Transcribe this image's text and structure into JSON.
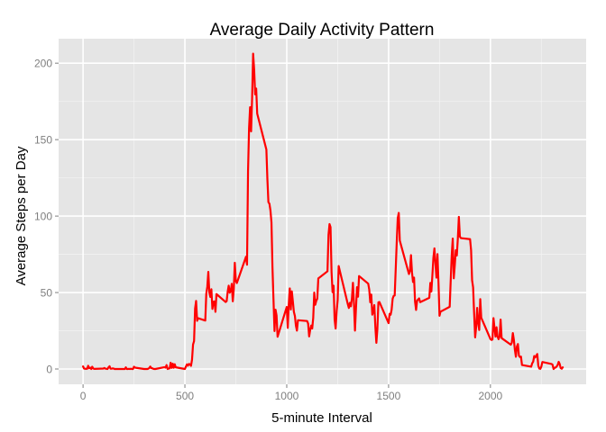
{
  "chart_data": {
    "type": "line",
    "title": "Average Daily Activity Pattern",
    "xlabel": "5-minute Interval",
    "ylabel": "Average Steps per Day",
    "xlim": [
      -120,
      2470
    ],
    "ylim": [
      -10,
      216
    ],
    "x_ticks": [
      0,
      500,
      1000,
      1500,
      2000
    ],
    "y_ticks": [
      0,
      50,
      100,
      150,
      200
    ],
    "grid": true,
    "legend": "none",
    "colors": {
      "panel": "#e5e5e5",
      "grid": "#ffffff",
      "line": "#ff0000",
      "tick_label": "#7f7f7f",
      "text": "#000000"
    },
    "series": [
      {
        "points": [
          [
            0,
            1.7
          ],
          [
            5,
            0.3
          ],
          [
            10,
            0.1
          ],
          [
            15,
            0.2
          ],
          [
            20,
            0.1
          ],
          [
            25,
            2.1
          ],
          [
            30,
            0.5
          ],
          [
            35,
            0.9
          ],
          [
            40,
            0.0
          ],
          [
            45,
            1.5
          ],
          [
            50,
            0.3
          ],
          [
            55,
            0.1
          ],
          [
            100,
            0.3
          ],
          [
            105,
            0.7
          ],
          [
            110,
            0.2
          ],
          [
            115,
            0.1
          ],
          [
            120,
            0.0
          ],
          [
            125,
            1.1
          ],
          [
            130,
            1.8
          ],
          [
            135,
            0.2
          ],
          [
            140,
            0.2
          ],
          [
            145,
            0.4
          ],
          [
            150,
            0.3
          ],
          [
            155,
            0.0
          ],
          [
            200,
            0.0
          ],
          [
            205,
            0.0
          ],
          [
            210,
            1.1
          ],
          [
            215,
            0.0
          ],
          [
            220,
            0.0
          ],
          [
            225,
            0.1
          ],
          [
            230,
            0.0
          ],
          [
            235,
            0.2
          ],
          [
            240,
            0.0
          ],
          [
            245,
            0.0
          ],
          [
            250,
            1.5
          ],
          [
            255,
            0.9
          ],
          [
            300,
            0.0
          ],
          [
            305,
            0.0
          ],
          [
            310,
            0.0
          ],
          [
            315,
            0.0
          ],
          [
            320,
            0.2
          ],
          [
            325,
            0.6
          ],
          [
            330,
            1.6
          ],
          [
            335,
            0.6
          ],
          [
            340,
            0.5
          ],
          [
            345,
            0.1
          ],
          [
            350,
            0.0
          ],
          [
            355,
            0.0
          ],
          [
            400,
            1.2
          ],
          [
            405,
            0.9
          ],
          [
            410,
            2.6
          ],
          [
            415,
            0.0
          ],
          [
            420,
            0.3
          ],
          [
            425,
            0.4
          ],
          [
            430,
            4.1
          ],
          [
            435,
            0.7
          ],
          [
            440,
            3.5
          ],
          [
            445,
            0.8
          ],
          [
            450,
            3.1
          ],
          [
            455,
            1.1
          ],
          [
            500,
            0.0
          ],
          [
            505,
            1.6
          ],
          [
            510,
            3.0
          ],
          [
            515,
            2.2
          ],
          [
            520,
            3.3
          ],
          [
            525,
            3.0
          ],
          [
            530,
            2.1
          ],
          [
            535,
            6.1
          ],
          [
            540,
            16.0
          ],
          [
            545,
            18.3
          ],
          [
            550,
            39.5
          ],
          [
            555,
            44.5
          ],
          [
            560,
            31.5
          ],
          [
            565,
            33.2
          ],
          [
            600,
            31.7
          ],
          [
            605,
            49.2
          ],
          [
            610,
            53.8
          ],
          [
            615,
            63.5
          ],
          [
            620,
            50.0
          ],
          [
            625,
            47.1
          ],
          [
            630,
            52.2
          ],
          [
            635,
            39.3
          ],
          [
            640,
            44.0
          ],
          [
            645,
            44.2
          ],
          [
            650,
            37.4
          ],
          [
            655,
            49.0
          ],
          [
            700,
            43.8
          ],
          [
            705,
            44.4
          ],
          [
            710,
            50.5
          ],
          [
            715,
            54.5
          ],
          [
            720,
            49.9
          ],
          [
            725,
            51.0
          ],
          [
            730,
            55.7
          ],
          [
            735,
            44.3
          ],
          [
            740,
            52.3
          ],
          [
            745,
            69.5
          ],
          [
            750,
            57.8
          ],
          [
            755,
            56.2
          ],
          [
            800,
            73.4
          ],
          [
            805,
            68.2
          ],
          [
            810,
            129.4
          ],
          [
            815,
            157.5
          ],
          [
            820,
            171.2
          ],
          [
            825,
            155.4
          ],
          [
            830,
            177.3
          ],
          [
            835,
            206.2
          ],
          [
            840,
            195.9
          ],
          [
            845,
            179.6
          ],
          [
            850,
            183.4
          ],
          [
            855,
            167.0
          ],
          [
            900,
            143.5
          ],
          [
            905,
            124.0
          ],
          [
            910,
            109.1
          ],
          [
            915,
            108.1
          ],
          [
            920,
            103.7
          ],
          [
            925,
            95.9
          ],
          [
            930,
            66.2
          ],
          [
            935,
            45.2
          ],
          [
            940,
            24.8
          ],
          [
            945,
            38.8
          ],
          [
            950,
            34.98
          ],
          [
            955,
            21.1
          ],
          [
            1000,
            40.6
          ],
          [
            1005,
            26.9
          ],
          [
            1010,
            42.4
          ],
          [
            1015,
            52.7
          ],
          [
            1020,
            38.9
          ],
          [
            1025,
            50.8
          ],
          [
            1030,
            44.3
          ],
          [
            1035,
            37.4
          ],
          [
            1040,
            34.7
          ],
          [
            1045,
            28.3
          ],
          [
            1050,
            25.1
          ],
          [
            1055,
            31.9
          ],
          [
            1100,
            31.4
          ],
          [
            1105,
            29.7
          ],
          [
            1110,
            21.3
          ],
          [
            1115,
            25.5
          ],
          [
            1120,
            28.4
          ],
          [
            1125,
            26.5
          ],
          [
            1130,
            33.4
          ],
          [
            1135,
            49.98
          ],
          [
            1140,
            42.0
          ],
          [
            1145,
            44.6
          ],
          [
            1150,
            46.0
          ],
          [
            1155,
            59.2
          ],
          [
            1200,
            63.9
          ],
          [
            1205,
            87.7
          ],
          [
            1210,
            94.8
          ],
          [
            1215,
            92.8
          ],
          [
            1220,
            63.4
          ],
          [
            1225,
            50.2
          ],
          [
            1230,
            54.5
          ],
          [
            1235,
            32.4
          ],
          [
            1240,
            26.5
          ],
          [
            1245,
            37.7
          ],
          [
            1250,
            45.1
          ],
          [
            1255,
            67.3
          ],
          [
            1300,
            42.3
          ],
          [
            1305,
            39.9
          ],
          [
            1310,
            43.3
          ],
          [
            1315,
            40.98
          ],
          [
            1320,
            46.2
          ],
          [
            1325,
            56.4
          ],
          [
            1330,
            42.8
          ],
          [
            1335,
            25.1
          ],
          [
            1340,
            39.96
          ],
          [
            1345,
            53.5
          ],
          [
            1350,
            47.3
          ],
          [
            1355,
            60.8
          ],
          [
            1400,
            55.8
          ],
          [
            1405,
            51.96
          ],
          [
            1410,
            43.6
          ],
          [
            1415,
            48.7
          ],
          [
            1420,
            35.5
          ],
          [
            1425,
            37.5
          ],
          [
            1430,
            41.8
          ],
          [
            1435,
            27.5
          ],
          [
            1440,
            17.1
          ],
          [
            1445,
            26.1
          ],
          [
            1450,
            43.6
          ],
          [
            1455,
            43.8
          ],
          [
            1500,
            30.0
          ],
          [
            1505,
            36.1
          ],
          [
            1510,
            35.5
          ],
          [
            1515,
            38.8
          ],
          [
            1520,
            45.96
          ],
          [
            1525,
            47.8
          ],
          [
            1530,
            48.1
          ],
          [
            1535,
            65.3
          ],
          [
            1540,
            82.9
          ],
          [
            1545,
            98.7
          ],
          [
            1550,
            102.1
          ],
          [
            1555,
            83.96
          ],
          [
            1600,
            62.1
          ],
          [
            1605,
            64.1
          ],
          [
            1610,
            74.5
          ],
          [
            1615,
            63.2
          ],
          [
            1620,
            56.9
          ],
          [
            1625,
            59.8
          ],
          [
            1630,
            43.9
          ],
          [
            1635,
            38.6
          ],
          [
            1640,
            44.7
          ],
          [
            1645,
            45.5
          ],
          [
            1650,
            46.2
          ],
          [
            1655,
            43.7
          ],
          [
            1700,
            46.6
          ],
          [
            1705,
            56.3
          ],
          [
            1710,
            50.7
          ],
          [
            1715,
            61.2
          ],
          [
            1720,
            72.7
          ],
          [
            1725,
            78.9
          ],
          [
            1730,
            68.9
          ],
          [
            1735,
            59.7
          ],
          [
            1740,
            75.1
          ],
          [
            1745,
            56.5
          ],
          [
            1750,
            34.8
          ],
          [
            1755,
            37.5
          ],
          [
            1800,
            40.7
          ],
          [
            1805,
            58.0
          ],
          [
            1810,
            74.7
          ],
          [
            1815,
            85.3
          ],
          [
            1820,
            59.3
          ],
          [
            1825,
            67.8
          ],
          [
            1830,
            77.7
          ],
          [
            1835,
            74.2
          ],
          [
            1840,
            85.3
          ],
          [
            1845,
            99.5
          ],
          [
            1850,
            86.6
          ],
          [
            1855,
            85.6
          ],
          [
            1900,
            84.9
          ],
          [
            1905,
            77.8
          ],
          [
            1910,
            58.0
          ],
          [
            1915,
            53.4
          ],
          [
            1920,
            36.3
          ],
          [
            1925,
            20.7
          ],
          [
            1930,
            27.4
          ],
          [
            1935,
            40.0
          ],
          [
            1940,
            30.2
          ],
          [
            1945,
            25.5
          ],
          [
            1950,
            45.7
          ],
          [
            1955,
            33.5
          ],
          [
            2000,
            19.6
          ],
          [
            2005,
            19.0
          ],
          [
            2010,
            19.3
          ],
          [
            2015,
            33.3
          ],
          [
            2020,
            26.8
          ],
          [
            2025,
            21.2
          ],
          [
            2030,
            27.3
          ],
          [
            2035,
            21.3
          ],
          [
            2040,
            19.5
          ],
          [
            2045,
            21.3
          ],
          [
            2050,
            32.3
          ],
          [
            2055,
            20.2
          ],
          [
            2100,
            15.9
          ],
          [
            2105,
            17.2
          ],
          [
            2110,
            23.5
          ],
          [
            2115,
            19.2
          ],
          [
            2120,
            12.5
          ],
          [
            2125,
            8.0
          ],
          [
            2130,
            14.7
          ],
          [
            2135,
            16.3
          ],
          [
            2140,
            8.7
          ],
          [
            2145,
            7.8
          ],
          [
            2150,
            8.1
          ],
          [
            2155,
            2.6
          ],
          [
            2200,
            1.5
          ],
          [
            2205,
            3.7
          ],
          [
            2210,
            4.8
          ],
          [
            2215,
            8.5
          ],
          [
            2220,
            7.5
          ],
          [
            2225,
            8.7
          ],
          [
            2230,
            9.8
          ],
          [
            2235,
            2.2
          ],
          [
            2240,
            0.3
          ],
          [
            2245,
            0.1
          ],
          [
            2250,
            1.6
          ],
          [
            2255,
            4.6
          ],
          [
            2300,
            3.3
          ],
          [
            2305,
            2.8
          ],
          [
            2310,
            0.0
          ],
          [
            2315,
            0.8
          ],
          [
            2320,
            0.96
          ],
          [
            2325,
            1.6
          ],
          [
            2330,
            2.6
          ],
          [
            2335,
            4.7
          ],
          [
            2340,
            3.3
          ],
          [
            2345,
            0.6
          ],
          [
            2350,
            0.2
          ],
          [
            2355,
            1.1
          ]
        ]
      }
    ]
  }
}
